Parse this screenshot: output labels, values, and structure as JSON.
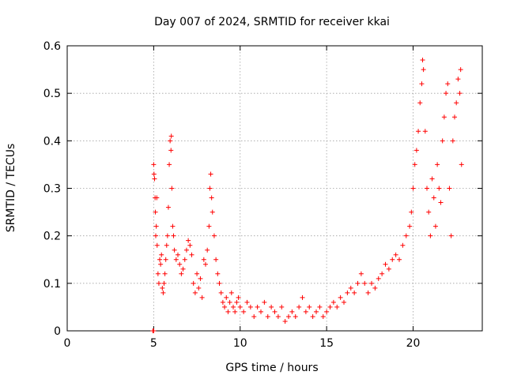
{
  "chart_data": {
    "type": "scatter",
    "title": "Day 007 of 2024, SRMTID for receiver kkai",
    "xlabel": "GPS time / hours",
    "ylabel": "SRMTID / TECUs",
    "xlim": [
      0,
      24
    ],
    "ylim": [
      0,
      0.6
    ],
    "xticks": [
      0,
      5,
      10,
      15,
      20
    ],
    "xtick_labels": [
      "0",
      "5",
      "10",
      "15",
      "20"
    ],
    "yticks": [
      0,
      0.1,
      0.2,
      0.3,
      0.4,
      0.5,
      0.6
    ],
    "ytick_labels": [
      "0",
      "0.1",
      "0.2",
      "0.3",
      "0.4",
      "0.5",
      "0.6"
    ],
    "grid": true,
    "marker": "+",
    "color": "#ff0000",
    "series": [
      {
        "name": "kkai",
        "points": [
          [
            4.95,
            0.0
          ],
          [
            5.0,
            0.0
          ],
          [
            5.0,
            0.35
          ],
          [
            5.02,
            0.33
          ],
          [
            5.05,
            0.32
          ],
          [
            5.08,
            0.28
          ],
          [
            5.1,
            0.25
          ],
          [
            5.12,
            0.2
          ],
          [
            5.15,
            0.22
          ],
          [
            5.18,
            0.28
          ],
          [
            5.2,
            0.18
          ],
          [
            5.25,
            0.12
          ],
          [
            5.3,
            0.1
          ],
          [
            5.35,
            0.15
          ],
          [
            5.4,
            0.14
          ],
          [
            5.45,
            0.16
          ],
          [
            5.5,
            0.09
          ],
          [
            5.55,
            0.08
          ],
          [
            5.6,
            0.1
          ],
          [
            5.65,
            0.12
          ],
          [
            5.7,
            0.15
          ],
          [
            5.75,
            0.18
          ],
          [
            5.8,
            0.2
          ],
          [
            5.85,
            0.26
          ],
          [
            5.9,
            0.35
          ],
          [
            5.95,
            0.4
          ],
          [
            6.0,
            0.38
          ],
          [
            6.02,
            0.41
          ],
          [
            6.05,
            0.3
          ],
          [
            6.1,
            0.22
          ],
          [
            6.15,
            0.2
          ],
          [
            6.2,
            0.17
          ],
          [
            6.3,
            0.15
          ],
          [
            6.4,
            0.16
          ],
          [
            6.5,
            0.14
          ],
          [
            6.6,
            0.12
          ],
          [
            6.7,
            0.13
          ],
          [
            6.8,
            0.15
          ],
          [
            6.9,
            0.17
          ],
          [
            7.0,
            0.19
          ],
          [
            7.1,
            0.18
          ],
          [
            7.2,
            0.16
          ],
          [
            7.3,
            0.1
          ],
          [
            7.4,
            0.08
          ],
          [
            7.5,
            0.12
          ],
          [
            7.6,
            0.09
          ],
          [
            7.7,
            0.11
          ],
          [
            7.8,
            0.07
          ],
          [
            7.9,
            0.15
          ],
          [
            8.0,
            0.14
          ],
          [
            8.1,
            0.17
          ],
          [
            8.2,
            0.22
          ],
          [
            8.25,
            0.3
          ],
          [
            8.3,
            0.33
          ],
          [
            8.35,
            0.28
          ],
          [
            8.4,
            0.25
          ],
          [
            8.5,
            0.2
          ],
          [
            8.6,
            0.15
          ],
          [
            8.7,
            0.12
          ],
          [
            8.8,
            0.1
          ],
          [
            8.9,
            0.08
          ],
          [
            9.0,
            0.06
          ],
          [
            9.1,
            0.05
          ],
          [
            9.2,
            0.07
          ],
          [
            9.3,
            0.04
          ],
          [
            9.4,
            0.06
          ],
          [
            9.5,
            0.08
          ],
          [
            9.6,
            0.05
          ],
          [
            9.7,
            0.04
          ],
          [
            9.8,
            0.06
          ],
          [
            9.9,
            0.07
          ],
          [
            10.0,
            0.05
          ],
          [
            10.2,
            0.04
          ],
          [
            10.4,
            0.06
          ],
          [
            10.6,
            0.05
          ],
          [
            10.8,
            0.03
          ],
          [
            11.0,
            0.05
          ],
          [
            11.2,
            0.04
          ],
          [
            11.4,
            0.06
          ],
          [
            11.6,
            0.03
          ],
          [
            11.8,
            0.05
          ],
          [
            12.0,
            0.04
          ],
          [
            12.2,
            0.03
          ],
          [
            12.4,
            0.05
          ],
          [
            12.6,
            0.02
          ],
          [
            12.8,
            0.03
          ],
          [
            13.0,
            0.04
          ],
          [
            13.2,
            0.03
          ],
          [
            13.4,
            0.05
          ],
          [
            13.6,
            0.07
          ],
          [
            13.8,
            0.04
          ],
          [
            14.0,
            0.05
          ],
          [
            14.2,
            0.03
          ],
          [
            14.4,
            0.04
          ],
          [
            14.6,
            0.05
          ],
          [
            14.8,
            0.03
          ],
          [
            15.0,
            0.04
          ],
          [
            15.2,
            0.05
          ],
          [
            15.4,
            0.06
          ],
          [
            15.6,
            0.05
          ],
          [
            15.8,
            0.07
          ],
          [
            16.0,
            0.06
          ],
          [
            16.2,
            0.08
          ],
          [
            16.4,
            0.09
          ],
          [
            16.6,
            0.08
          ],
          [
            16.8,
            0.1
          ],
          [
            17.0,
            0.12
          ],
          [
            17.2,
            0.1
          ],
          [
            17.4,
            0.08
          ],
          [
            17.6,
            0.1
          ],
          [
            17.8,
            0.09
          ],
          [
            18.0,
            0.11
          ],
          [
            18.2,
            0.12
          ],
          [
            18.4,
            0.14
          ],
          [
            18.6,
            0.13
          ],
          [
            18.8,
            0.15
          ],
          [
            19.0,
            0.16
          ],
          [
            19.2,
            0.15
          ],
          [
            19.4,
            0.18
          ],
          [
            19.6,
            0.2
          ],
          [
            19.8,
            0.22
          ],
          [
            19.9,
            0.25
          ],
          [
            20.0,
            0.3
          ],
          [
            20.1,
            0.35
          ],
          [
            20.2,
            0.38
          ],
          [
            20.3,
            0.42
          ],
          [
            20.4,
            0.48
          ],
          [
            20.5,
            0.52
          ],
          [
            20.55,
            0.57
          ],
          [
            20.6,
            0.55
          ],
          [
            20.7,
            0.42
          ],
          [
            20.8,
            0.3
          ],
          [
            20.9,
            0.25
          ],
          [
            21.0,
            0.2
          ],
          [
            21.1,
            0.32
          ],
          [
            21.2,
            0.28
          ],
          [
            21.3,
            0.22
          ],
          [
            21.4,
            0.35
          ],
          [
            21.5,
            0.3
          ],
          [
            21.6,
            0.27
          ],
          [
            21.7,
            0.4
          ],
          [
            21.8,
            0.45
          ],
          [
            21.9,
            0.5
          ],
          [
            22.0,
            0.52
          ],
          [
            22.1,
            0.3
          ],
          [
            22.2,
            0.2
          ],
          [
            22.3,
            0.4
          ],
          [
            22.4,
            0.45
          ],
          [
            22.5,
            0.48
          ],
          [
            22.6,
            0.53
          ],
          [
            22.7,
            0.5
          ],
          [
            22.75,
            0.55
          ],
          [
            22.8,
            0.35
          ]
        ]
      }
    ]
  }
}
